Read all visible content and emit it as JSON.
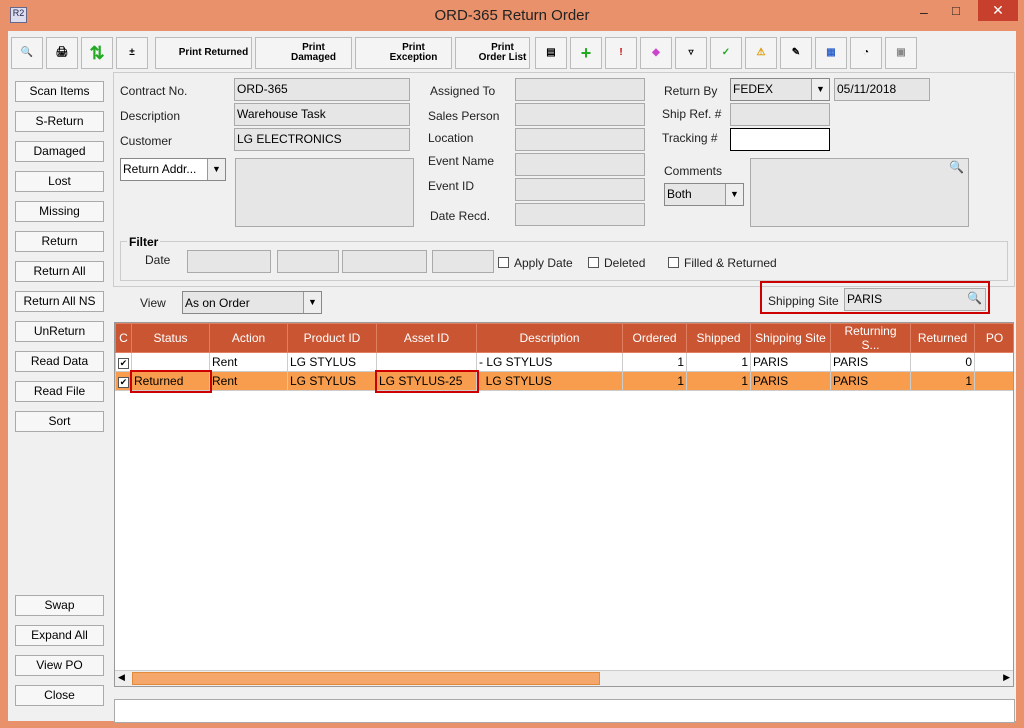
{
  "window": {
    "title": "ORD-365 Return Order",
    "app_icon": "R2"
  },
  "toolbar": {
    "print_returned": "Print Returned",
    "print_damaged": "Print Damaged",
    "print_exception": "Print Exception",
    "print_order_list": "Print Order List"
  },
  "left_buttons": [
    "Scan Items",
    "S-Return",
    "Damaged",
    "Lost",
    "Missing",
    "Return",
    "Return All",
    "Return All NS",
    "UnReturn",
    "Read Data",
    "Read File",
    "Sort"
  ],
  "bottom_buttons": [
    "Swap",
    "Expand All",
    "View PO",
    "Close"
  ],
  "form": {
    "contract_label": "Contract No.",
    "contract": "ORD-365",
    "description_label": "Description",
    "description": "Warehouse Task",
    "customer_label": "Customer",
    "customer": "LG ELECTRONICS",
    "return_addr": "Return Addr...",
    "assigned_to_label": "Assigned To",
    "sales_person_label": "Sales Person",
    "location_label": "Location",
    "event_name_label": "Event Name",
    "event_id_label": "Event ID",
    "date_recd_label": "Date Recd.",
    "return_by_label": "Return By",
    "return_by": "FEDEX",
    "return_date": "05/11/2018",
    "ship_ref_label": "Ship Ref. #",
    "tracking_label": "Tracking #",
    "comments_label": "Comments",
    "comments_select": "Both"
  },
  "filter": {
    "title": "Filter",
    "date_label": "Date",
    "apply_date": "Apply Date",
    "deleted": "Deleted",
    "filled_returned": "Filled & Returned"
  },
  "view": {
    "label": "View",
    "value": "As on Order"
  },
  "shipping_site": {
    "label": "Shipping Site",
    "value": "PARIS"
  },
  "grid": {
    "columns": [
      "C",
      "Status",
      "Action",
      "Product ID",
      "Asset ID",
      "Description",
      "Ordered",
      "Shipped",
      "Shipping Site",
      "Returning S...",
      "Returned",
      "PO"
    ],
    "rows": [
      {
        "checked": true,
        "status": "",
        "action": "Rent",
        "product": "LG STYLUS",
        "asset": "",
        "desc": "- LG STYLUS",
        "ordered": "1",
        "shipped": "1",
        "ship_site": "PARIS",
        "ret_site": "PARIS",
        "returned": "0",
        "po": ""
      },
      {
        "checked": true,
        "status": "Returned",
        "action": "Rent",
        "product": "LG STYLUS",
        "asset": "LG STYLUS-25",
        "desc": "  LG STYLUS",
        "ordered": "1",
        "shipped": "1",
        "ship_site": "PARIS",
        "ret_site": "PARIS",
        "returned": "1",
        "po": ""
      }
    ]
  }
}
